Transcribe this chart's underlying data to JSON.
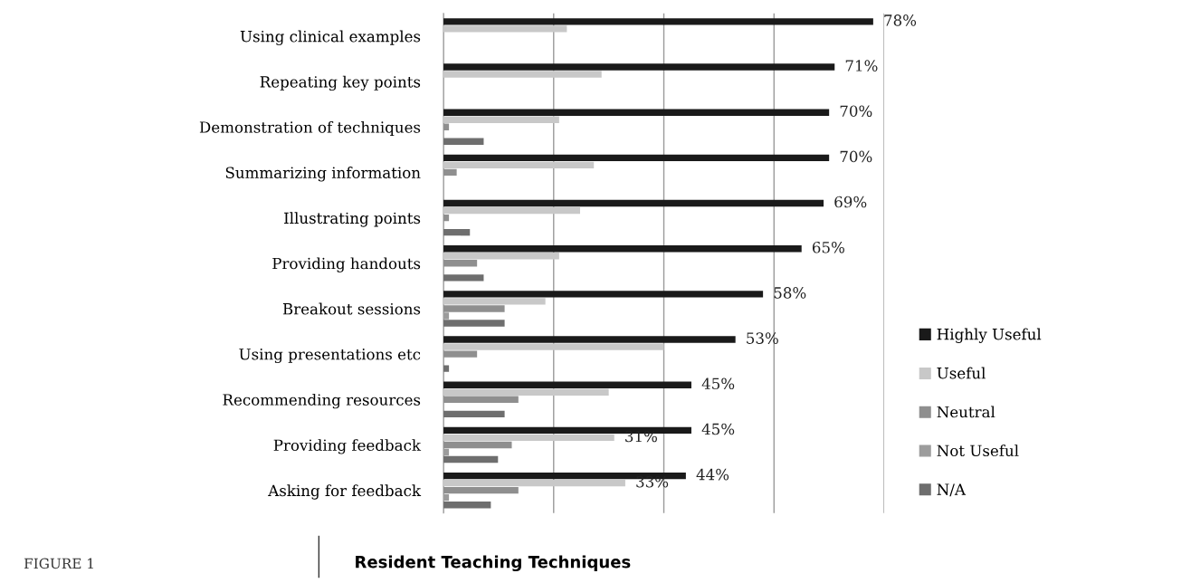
{
  "chart_data": {
    "type": "bar",
    "orientation": "horizontal",
    "title": "Resident Teaching Techniques",
    "annotations": [
      "FIGURE 1"
    ],
    "categories": [
      "Using clinical examples",
      "Repeating key points",
      "Demonstration of techniques",
      "Summarizing information",
      "Illustrating points",
      "Providing handouts",
      "Breakout sessions",
      "Using presentations etc",
      "Recommending resources",
      "Providing feedback",
      "Asking for feedback"
    ],
    "series": [
      {
        "name": "Highly Useful",
        "color": "#1a1a1a",
        "values": [
          78,
          71,
          70,
          70,
          69,
          65,
          58,
          53,
          45,
          45,
          44
        ],
        "value_labels": [
          "78%",
          "71%",
          "70%",
          "70%",
          "69%",
          "65%",
          "58%",
          "53%",
          "45%",
          "45%",
          "44%"
        ]
      },
      {
        "name": "Useful",
        "color": "#c8c8c8",
        "values": [
          22.4,
          28.7,
          21,
          27.3,
          24.8,
          21,
          18.5,
          40,
          30,
          31,
          33
        ],
        "value_labels": [
          null,
          null,
          null,
          null,
          null,
          null,
          null,
          null,
          null,
          "31%",
          "33%"
        ]
      },
      {
        "name": "Neutral",
        "color": "#8f8f8f",
        "values": [
          0,
          0,
          1,
          2.4,
          1,
          6.1,
          11.1,
          6.1,
          13.6,
          12.4,
          13.6
        ]
      },
      {
        "name": "Not Useful",
        "color": "#9c9c9c",
        "values": [
          0,
          0,
          0,
          0,
          0,
          0,
          1,
          0,
          0,
          1,
          1
        ]
      },
      {
        "name": "N/A",
        "color": "#6e6e6e",
        "values": [
          0,
          0,
          7.3,
          0,
          4.8,
          7.3,
          11.1,
          1,
          11.1,
          9.9,
          8.6
        ]
      }
    ],
    "xlim": [
      0,
      80
    ],
    "xticks": [
      {
        "value": 0,
        "label": null
      },
      {
        "value": 20,
        "label": null
      },
      {
        "value": 40,
        "label": null
      },
      {
        "value": 60,
        "label": null
      },
      {
        "value": 80,
        "label": null
      }
    ],
    "tick_labels": "y",
    "grid": "x",
    "legend": "right"
  }
}
